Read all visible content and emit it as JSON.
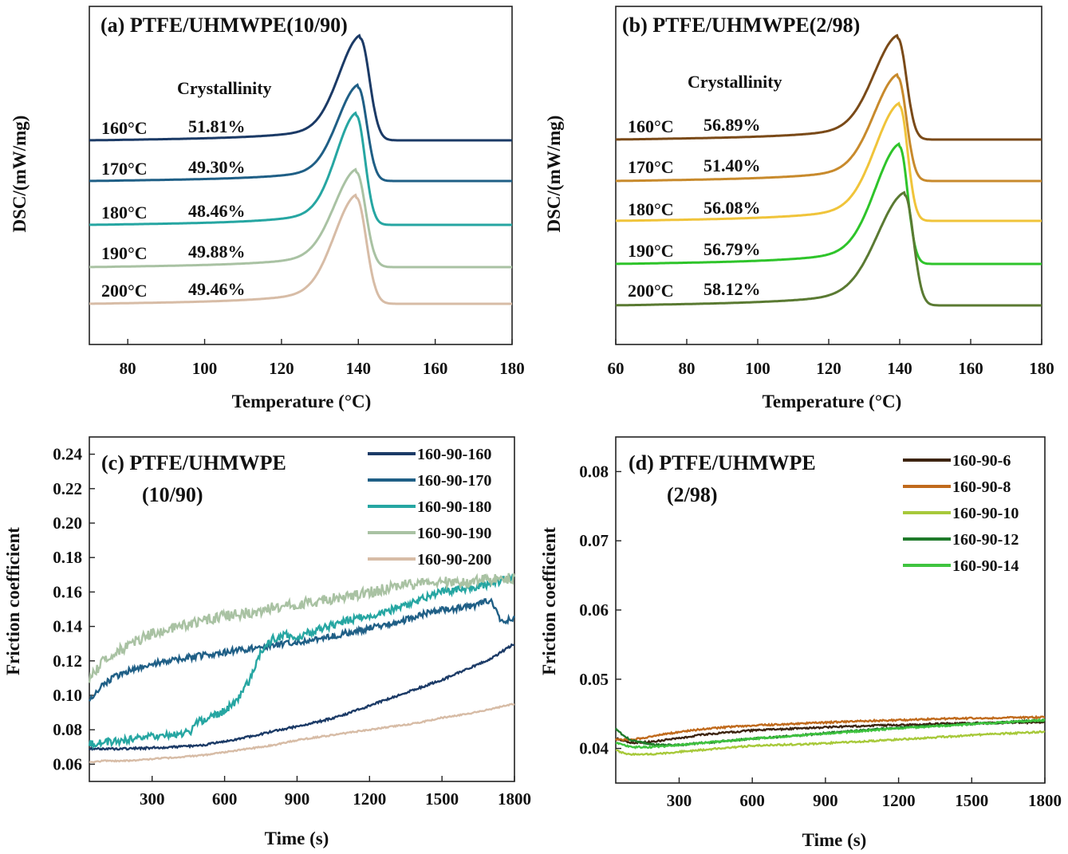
{
  "chart_data": [
    {
      "panel": "a",
      "type": "line",
      "title": "(a) PTFE/UHMWPE(10/90)",
      "xlabel": "Temperature (°C)",
      "ylabel": "DSC/(mW/mg)",
      "xlim": [
        70,
        180
      ],
      "xticks": [
        "80",
        "100",
        "120",
        "140",
        "160",
        "180"
      ],
      "annotation_header": "Crystallinity",
      "grid": false,
      "series": [
        {
          "label": "160°C",
          "crystallinity": "51.81%",
          "color": "#1b3a66",
          "peak_x": 140.5,
          "onset_left": 118,
          "end_x": 148
        },
        {
          "label": "170°C",
          "crystallinity": "49.30%",
          "color": "#1f5f86",
          "peak_x": 140.0,
          "onset_left": 118,
          "end_x": 147
        },
        {
          "label": "180°C",
          "crystallinity": "48.46%",
          "color": "#26a6a2",
          "peak_x": 139.5,
          "onset_left": 118,
          "end_x": 146.5
        },
        {
          "label": "190°C",
          "crystallinity": "49.88%",
          "color": "#a9c2a3",
          "peak_x": 139.5,
          "onset_left": 116,
          "end_x": 147
        },
        {
          "label": "200°C",
          "crystallinity": "49.46%",
          "color": "#d7bca6",
          "peak_x": 139.5,
          "onset_left": 116,
          "end_x": 147.5
        }
      ]
    },
    {
      "panel": "b",
      "type": "line",
      "title": "(b) PTFE/UHMWPE(2/98)",
      "xlabel": "Temperature (°C)",
      "ylabel": "DSC/(mW/mg)",
      "xlim": [
        60,
        180
      ],
      "xticks": [
        "60",
        "80",
        "100",
        "120",
        "140",
        "160",
        "180"
      ],
      "annotation_header": "Crystallinity",
      "grid": false,
      "series": [
        {
          "label": "160°C",
          "crystallinity": "56.89%",
          "color": "#7a4a18",
          "peak_x": 139.5,
          "onset_left": 112,
          "end_x": 147
        },
        {
          "label": "170°C",
          "crystallinity": "51.40%",
          "color": "#c88a2c",
          "peak_x": 139.5,
          "onset_left": 112,
          "end_x": 147
        },
        {
          "label": "180°C",
          "crystallinity": "56.08%",
          "color": "#f0c43a",
          "peak_x": 140.0,
          "onset_left": 112,
          "end_x": 147
        },
        {
          "label": "190°C",
          "crystallinity": "56.79%",
          "color": "#2ec42a",
          "peak_x": 140.0,
          "onset_left": 112,
          "end_x": 147
        },
        {
          "label": "200°C",
          "crystallinity": "58.12%",
          "color": "#5a7a32",
          "peak_x": 141.5,
          "onset_left": 110,
          "end_x": 149
        }
      ]
    },
    {
      "panel": "c",
      "type": "line",
      "title": "(c) PTFE/UHMWPE",
      "subtitle": "(10/90)",
      "xlabel": "Time (s)",
      "ylabel": "Friction coefficient",
      "xlim": [
        40,
        1800
      ],
      "ylim": [
        0.05,
        0.25
      ],
      "xticks": [
        "300",
        "600",
        "900",
        "1200",
        "1500",
        "1800"
      ],
      "yticks": [
        "0.06",
        "0.08",
        "0.10",
        "0.12",
        "0.14",
        "0.16",
        "0.18",
        "0.20",
        "0.22",
        "0.24"
      ],
      "legend_position": "top-right",
      "grid": false,
      "series": [
        {
          "name": "160-90-160",
          "color": "#1b3a66",
          "x": [
            40,
            100,
            200,
            300,
            400,
            500,
            600,
            700,
            800,
            900,
            1000,
            1100,
            1200,
            1300,
            1400,
            1500,
            1600,
            1700,
            1800
          ],
          "y": [
            0.069,
            0.069,
            0.069,
            0.0695,
            0.07,
            0.071,
            0.073,
            0.076,
            0.079,
            0.082,
            0.085,
            0.089,
            0.094,
            0.099,
            0.104,
            0.109,
            0.115,
            0.121,
            0.13
          ]
        },
        {
          "name": "160-90-170",
          "color": "#1f5f86",
          "x": [
            40,
            60,
            100,
            150,
            200,
            300,
            400,
            500,
            600,
            700,
            800,
            900,
            1000,
            1100,
            1200,
            1300,
            1400,
            1500,
            1600,
            1700,
            1750,
            1800
          ],
          "y": [
            0.097,
            0.101,
            0.107,
            0.111,
            0.114,
            0.118,
            0.121,
            0.123,
            0.125,
            0.127,
            0.129,
            0.131,
            0.133,
            0.136,
            0.139,
            0.142,
            0.146,
            0.15,
            0.151,
            0.155,
            0.142,
            0.145
          ]
        },
        {
          "name": "160-90-180",
          "color": "#26a6a2",
          "x": [
            40,
            100,
            200,
            300,
            400,
            460,
            480,
            500,
            600,
            650,
            700,
            750,
            800,
            850,
            900,
            1000,
            1100,
            1200,
            1300,
            1400,
            1500,
            1600,
            1700,
            1800
          ],
          "y": [
            0.072,
            0.073,
            0.074,
            0.076,
            0.077,
            0.079,
            0.083,
            0.085,
            0.091,
            0.097,
            0.108,
            0.125,
            0.133,
            0.135,
            0.134,
            0.139,
            0.143,
            0.146,
            0.15,
            0.155,
            0.16,
            0.162,
            0.165,
            0.168
          ]
        },
        {
          "name": "160-90-190",
          "color": "#a9c2a3",
          "x": [
            40,
            100,
            200,
            300,
            400,
            500,
            600,
            700,
            800,
            900,
            1000,
            1100,
            1200,
            1300,
            1400,
            1500,
            1600,
            1700,
            1800
          ],
          "y": [
            0.11,
            0.12,
            0.129,
            0.136,
            0.14,
            0.143,
            0.146,
            0.148,
            0.151,
            0.153,
            0.155,
            0.157,
            0.16,
            0.163,
            0.165,
            0.166,
            0.166,
            0.167,
            0.168
          ]
        },
        {
          "name": "160-90-200",
          "color": "#d7bca6",
          "x": [
            40,
            100,
            200,
            300,
            400,
            500,
            600,
            700,
            800,
            900,
            1000,
            1100,
            1200,
            1300,
            1400,
            1500,
            1600,
            1700,
            1800
          ],
          "y": [
            0.061,
            0.062,
            0.062,
            0.063,
            0.064,
            0.065,
            0.067,
            0.069,
            0.071,
            0.074,
            0.076,
            0.078,
            0.08,
            0.082,
            0.084,
            0.087,
            0.089,
            0.092,
            0.095
          ]
        }
      ]
    },
    {
      "panel": "d",
      "type": "line",
      "title": "(d) PTFE/UHMWPE",
      "subtitle": "(2/98)",
      "xlabel": "Time (s)",
      "ylabel": "Friction coefficient",
      "xlim": [
        40,
        1800
      ],
      "ylim": [
        0.035,
        0.085
      ],
      "xticks": [
        "300",
        "600",
        "900",
        "1200",
        "1500",
        "1800"
      ],
      "yticks": [
        "0.04",
        "0.05",
        "0.06",
        "0.07",
        "0.08"
      ],
      "legend_position": "top-right",
      "grid": false,
      "series": [
        {
          "name": "160-90-6",
          "color": "#3d2410",
          "x": [
            40,
            100,
            200,
            300,
            400,
            500,
            600,
            800,
            1000,
            1200,
            1400,
            1600,
            1800
          ],
          "y": [
            0.0415,
            0.0408,
            0.041,
            0.0415,
            0.042,
            0.0423,
            0.0426,
            0.0429,
            0.0432,
            0.0434,
            0.0436,
            0.0437,
            0.0438
          ]
        },
        {
          "name": "160-90-8",
          "color": "#c06a1c",
          "x": [
            40,
            100,
            200,
            300,
            400,
            500,
            600,
            800,
            1000,
            1200,
            1400,
            1600,
            1800
          ],
          "y": [
            0.0413,
            0.0412,
            0.0418,
            0.0424,
            0.0428,
            0.0431,
            0.0433,
            0.0436,
            0.0439,
            0.0441,
            0.0443,
            0.0444,
            0.0445
          ]
        },
        {
          "name": "160-90-10",
          "color": "#a7c93a",
          "x": [
            40,
            100,
            200,
            300,
            400,
            500,
            600,
            800,
            1000,
            1200,
            1400,
            1600,
            1800
          ],
          "y": [
            0.0397,
            0.0391,
            0.0392,
            0.0395,
            0.0398,
            0.0401,
            0.0404,
            0.0406,
            0.0409,
            0.0413,
            0.0417,
            0.0421,
            0.0424
          ]
        },
        {
          "name": "160-90-12",
          "color": "#1f7a2a",
          "x": [
            40,
            60,
            100,
            200,
            300,
            400,
            500,
            600,
            800,
            1000,
            1200,
            1400,
            1600,
            1800
          ],
          "y": [
            0.0428,
            0.0422,
            0.0412,
            0.0405,
            0.0405,
            0.0408,
            0.0411,
            0.0414,
            0.0419,
            0.0425,
            0.043,
            0.0434,
            0.0437,
            0.0441
          ]
        },
        {
          "name": "160-90-14",
          "color": "#3fc43f",
          "x": [
            40,
            100,
            200,
            300,
            400,
            500,
            600,
            800,
            1000,
            1200,
            1400,
            1600,
            1800
          ],
          "y": [
            0.0408,
            0.0402,
            0.0402,
            0.0405,
            0.0408,
            0.0411,
            0.0414,
            0.0419,
            0.0424,
            0.0429,
            0.0433,
            0.0437,
            0.0441
          ]
        }
      ]
    }
  ]
}
